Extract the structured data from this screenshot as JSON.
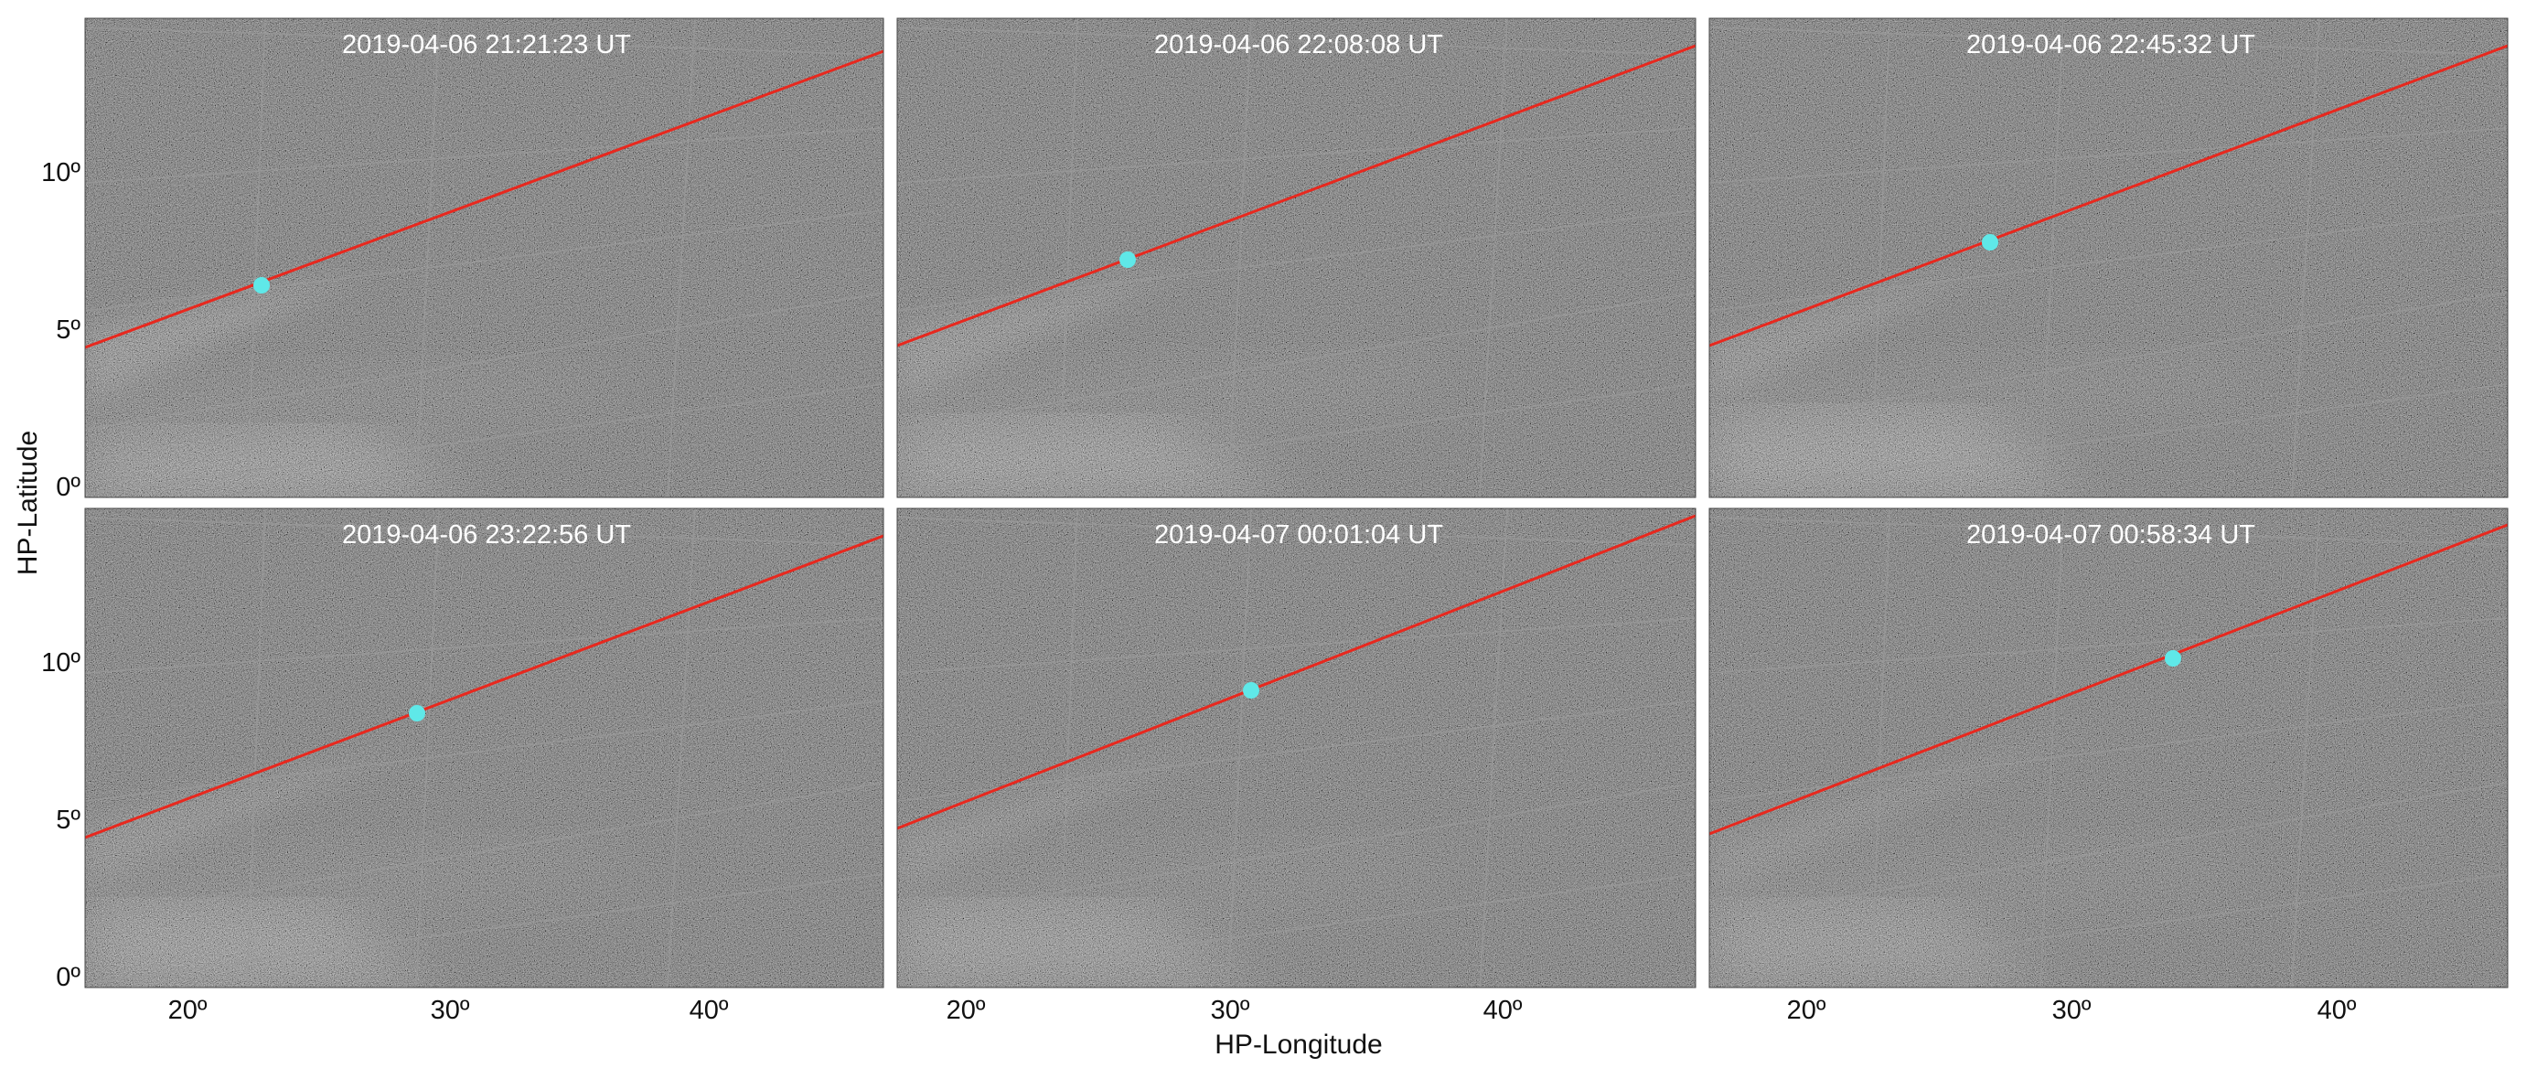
{
  "figure": {
    "xlabel": "HP-Longitude",
    "ylabel": "HP-Latitude",
    "x_ticks": [
      "20º",
      "30º",
      "40º"
    ],
    "y_ticks": [
      "10º",
      "5º",
      "0º"
    ],
    "colors": {
      "track": "#e8281e",
      "marker": "#5fe8e8",
      "grid": "#9a9a9a"
    }
  },
  "panels": [
    {
      "title": "2019-04-06 21:21:23 UT",
      "marker_lon": 23.1,
      "marker_lat": 6.3
    },
    {
      "title": "2019-04-06 22:08:08 UT",
      "marker_lon": 26.1,
      "marker_lat": 7.1
    },
    {
      "title": "2019-04-06 22:45:32 UT",
      "marker_lon": 27.0,
      "marker_lat": 7.7
    },
    {
      "title": "2019-04-06 23:22:56 UT",
      "marker_lon": 28.9,
      "marker_lat": 8.2
    },
    {
      "title": "2019-04-07 00:01:04 UT",
      "marker_lon": 30.7,
      "marker_lat": 8.9
    },
    {
      "title": "2019-04-07 00:58:34 UT",
      "marker_lon": 33.6,
      "marker_lat": 10.0
    }
  ]
}
